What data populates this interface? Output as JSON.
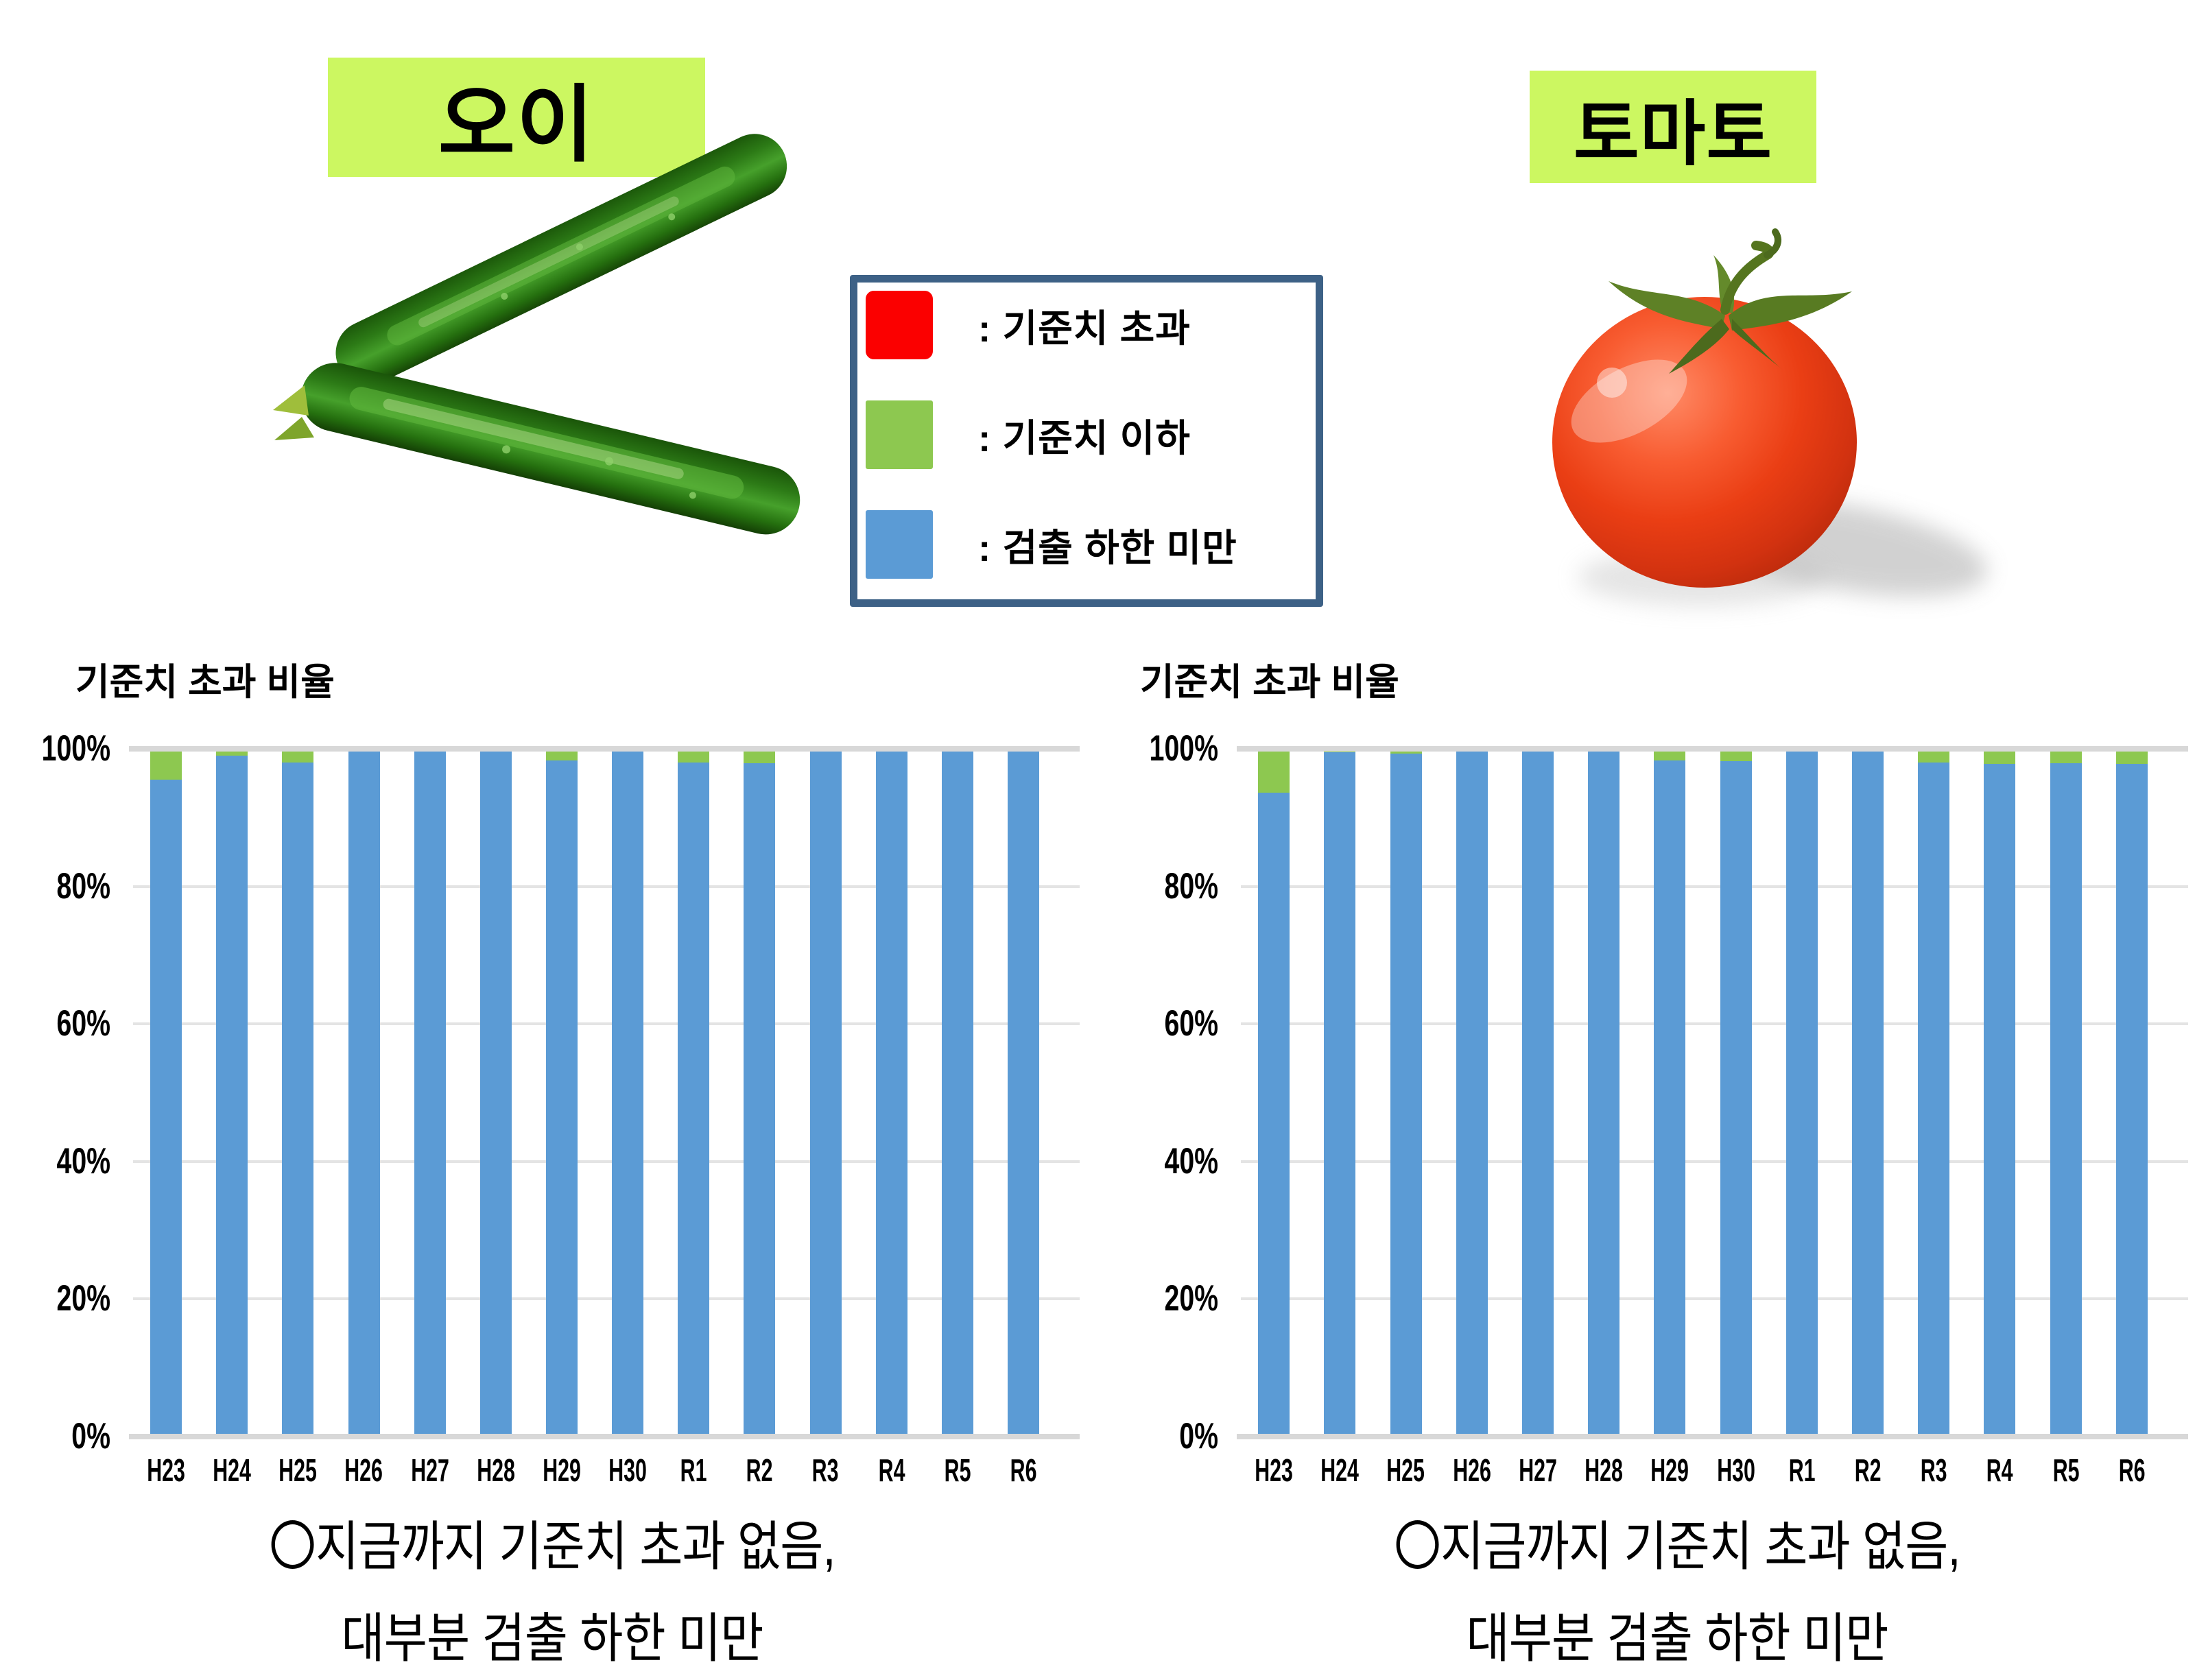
{
  "page": {
    "background": "#FFFFFF"
  },
  "colors": {
    "highlight": "#CCF761",
    "legend_border": "#3D6186",
    "bar_blue": "#5B9BD5",
    "bar_green": "#8DC850",
    "legend_red": "#FB0000",
    "grid": "#E4E4E4",
    "axis_line": "#D8D8D8"
  },
  "header": {
    "left": {
      "label": "오이",
      "image": "cucumber-photo"
    },
    "right": {
      "label": "토마토",
      "image": "tomato-photo"
    }
  },
  "legend": {
    "items": [
      {
        "name": "exceeds-standard",
        "label": ": 기준치 초과",
        "color": "#FB0000"
      },
      {
        "name": "below-standard",
        "label": ": 기준치 이하",
        "color": "#8DC850"
      },
      {
        "name": "below-detection-limit",
        "label": ": 검출 하한 미만",
        "color": "#5B9BD5"
      }
    ]
  },
  "chart_data": [
    {
      "type": "bar",
      "stacked": true,
      "subject": "오이",
      "title": "기준치 초과 비율",
      "categories": [
        "H23",
        "H24",
        "H25",
        "H26",
        "H27",
        "H28",
        "H29",
        "H30",
        "R1",
        "R2",
        "R3",
        "R4",
        "R5",
        "R6"
      ],
      "series": [
        {
          "name": "검출 하한 미만",
          "color": "#5B9BD5",
          "values": [
            95.5,
            99,
            98,
            100,
            100,
            100,
            98.3,
            100,
            98,
            97.9,
            100,
            100,
            100,
            100
          ]
        },
        {
          "name": "기준치 이하",
          "color": "#8DC850",
          "values": [
            4.5,
            1,
            2,
            0,
            0,
            0,
            1.7,
            0,
            2,
            2.1,
            0,
            0,
            0,
            0
          ]
        },
        {
          "name": "기준치 초과",
          "color": "#FB0000",
          "values": [
            0,
            0,
            0,
            0,
            0,
            0,
            0,
            0,
            0,
            0,
            0,
            0,
            0,
            0
          ]
        }
      ],
      "y_ticks": [
        "100%",
        "80%",
        "60%",
        "40%",
        "20%",
        "0%"
      ],
      "ylim": [
        0,
        100
      ],
      "grid": true,
      "legend_position": "shared-top-center",
      "note_line1": "〇지금까지 기준치 초과 없음,",
      "note_line2": "대부분 검출 하한 미만"
    },
    {
      "type": "bar",
      "stacked": true,
      "subject": "토마토",
      "title": "기준치 초과 비율",
      "categories": [
        "H23",
        "H24",
        "H25",
        "H26",
        "H27",
        "H28",
        "H29",
        "H30",
        "R1",
        "R2",
        "R3",
        "R4",
        "R5",
        "R6"
      ],
      "series": [
        {
          "name": "검출 하한 미만",
          "color": "#5B9BD5",
          "values": [
            93.6,
            99.5,
            99.3,
            100,
            100,
            100,
            98.3,
            98.2,
            100,
            100,
            98,
            97.8,
            97.9,
            97.8
          ]
        },
        {
          "name": "기준치 이하",
          "color": "#8DC850",
          "values": [
            6.4,
            0.5,
            0.7,
            0,
            0,
            0,
            1.7,
            1.8,
            0,
            0,
            2,
            2.2,
            2.1,
            2.2
          ]
        },
        {
          "name": "기준치 초과",
          "color": "#FB0000",
          "values": [
            0,
            0,
            0,
            0,
            0,
            0,
            0,
            0,
            0,
            0,
            0,
            0,
            0,
            0
          ]
        }
      ],
      "y_ticks": [
        "100%",
        "80%",
        "60%",
        "40%",
        "20%",
        "0%"
      ],
      "ylim": [
        0,
        100
      ],
      "grid": true,
      "legend_position": "shared-top-center",
      "note_line1": "〇지금까지 기준치 초과 없음,",
      "note_line2": "대부분 검출 하한 미만"
    }
  ]
}
